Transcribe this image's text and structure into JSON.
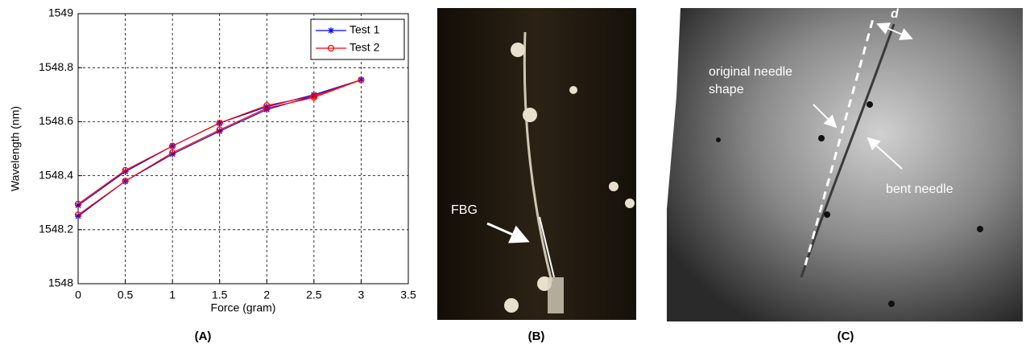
{
  "chart_data": {
    "type": "line",
    "xlabel": "Force (gram)",
    "ylabel": "Wavelength (nm)",
    "x": [
      0,
      0.5,
      1,
      1.5,
      2,
      2.5,
      3,
      2.5,
      2,
      1.5,
      1,
      0.5,
      0
    ],
    "series": [
      {
        "name": "Test 1",
        "color": "#0000ff",
        "marker": "star",
        "values": [
          1548.25,
          1548.38,
          1548.48,
          1548.565,
          1548.645,
          1548.695,
          1548.755,
          1548.7,
          1548.655,
          1548.595,
          1548.51,
          1548.415,
          1548.29
        ]
      },
      {
        "name": "Test 2",
        "color": "#ff0000",
        "marker": "circle",
        "values": [
          1548.255,
          1548.38,
          1548.485,
          1548.57,
          1548.65,
          1548.69,
          1548.755,
          1548.695,
          1548.66,
          1548.595,
          1548.51,
          1548.42,
          1548.295
        ]
      }
    ],
    "xlim": [
      0,
      3.5
    ],
    "xticks": [
      0,
      0.5,
      1,
      1.5,
      2,
      2.5,
      3,
      3.5
    ],
    "ylim": [
      1548,
      1549
    ],
    "yticks": [
      1548,
      1548.2,
      1548.4,
      1548.6,
      1548.8,
      1549
    ],
    "grid": true,
    "legend": "upper right"
  },
  "captions": [
    "(A)",
    "(B)",
    "(C)"
  ],
  "photo_b": {
    "label": "FBG"
  },
  "photo_c": {
    "label_original": [
      "original needle",
      "shape"
    ],
    "label_bent": "bent needle",
    "label_d": "d"
  }
}
